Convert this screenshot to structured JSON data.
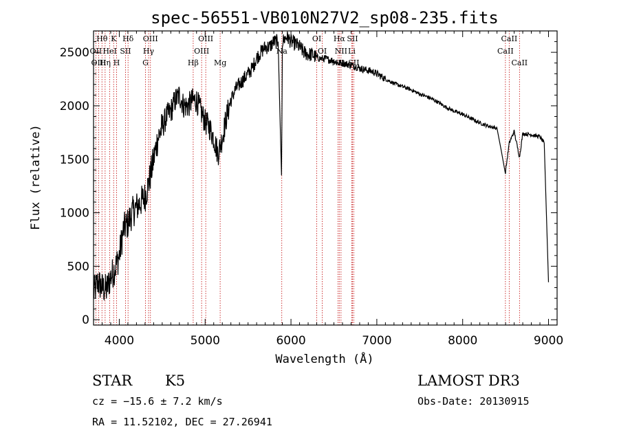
{
  "chart_data": {
    "type": "line",
    "title": "spec-56551-VB010N27V2_sp08-235.fits",
    "xlabel": "Wavelength (Å)",
    "ylabel": "Flux (relative)",
    "xlim": [
      3700,
      9100
    ],
    "ylim": [
      -50,
      2700
    ],
    "xticks": [
      4000,
      5000,
      6000,
      7000,
      8000,
      9000
    ],
    "yticks": [
      0,
      500,
      1000,
      1500,
      2000,
      2500
    ],
    "xtick_labels": [
      "4000",
      "5000",
      "6000",
      "7000",
      "8000",
      "9000"
    ],
    "ytick_labels": [
      "0",
      "500",
      "1000",
      "1500",
      "2000",
      "2500"
    ],
    "spectrum": {
      "x": [
        3700,
        3750,
        3800,
        3850,
        3900,
        3950,
        4000,
        4050,
        4100,
        4150,
        4200,
        4250,
        4300,
        4350,
        4400,
        4450,
        4500,
        4550,
        4600,
        4650,
        4700,
        4750,
        4800,
        4850,
        4900,
        4950,
        5000,
        5050,
        5100,
        5150,
        5200,
        5250,
        5300,
        5350,
        5400,
        5450,
        5500,
        5550,
        5600,
        5650,
        5700,
        5750,
        5800,
        5850,
        5890,
        5900,
        5950,
        6000,
        6050,
        6100,
        6150,
        6200,
        6250,
        6300,
        6350,
        6400,
        6450,
        6500,
        6550,
        6600,
        6650,
        6700,
        6750,
        6800,
        6850,
        6900,
        6950,
        7000,
        7100,
        7200,
        7300,
        7400,
        7500,
        7600,
        7700,
        7800,
        7900,
        8000,
        8100,
        8200,
        8300,
        8400,
        8498,
        8542,
        8600,
        8662,
        8700,
        8800,
        8900,
        8950,
        9000
      ],
      "y": [
        250,
        350,
        300,
        280,
        400,
        480,
        600,
        850,
        900,
        1000,
        1050,
        1100,
        1150,
        1300,
        1500,
        1700,
        1800,
        1900,
        1950,
        2050,
        2100,
        2000,
        2000,
        2050,
        2050,
        1950,
        1850,
        1800,
        1700,
        1550,
        1700,
        1900,
        2050,
        2150,
        2200,
        2250,
        2300,
        2350,
        2450,
        2500,
        2550,
        2550,
        2600,
        2600,
        1350,
        2600,
        2650,
        2600,
        2580,
        2550,
        2500,
        2480,
        2480,
        2450,
        2440,
        2440,
        2430,
        2420,
        2400,
        2400,
        2390,
        2380,
        2370,
        2350,
        2340,
        2330,
        2320,
        2300,
        2250,
        2210,
        2180,
        2150,
        2110,
        2080,
        2040,
        1990,
        1950,
        1920,
        1880,
        1840,
        1810,
        1790,
        1380,
        1650,
        1760,
        1520,
        1740,
        1730,
        1710,
        1650,
        350
      ]
    },
    "line_markers": [
      {
        "label": "Hθ",
        "wl": 3798,
        "row": 0
      },
      {
        "label": "OII",
        "wl": 3727,
        "row": 1
      },
      {
        "label": "OIII",
        "wl": 3760,
        "row": 2
      },
      {
        "label": "K",
        "wl": 3934,
        "row": 0
      },
      {
        "label": "HeI",
        "wl": 3889,
        "row": 1
      },
      {
        "label": "Hη",
        "wl": 3835,
        "row": 2
      },
      {
        "label": "H",
        "wl": 3969,
        "row": 2
      },
      {
        "label": "Hδ",
        "wl": 4102,
        "row": 0
      },
      {
        "label": "SII",
        "wl": 4072,
        "row": 1
      },
      {
        "label": "OIII",
        "wl": 4363,
        "row": 0
      },
      {
        "label": "Hγ",
        "wl": 4341,
        "row": 1
      },
      {
        "label": "G",
        "wl": 4305,
        "row": 2
      },
      {
        "label": "Hβ",
        "wl": 4861,
        "row": 2
      },
      {
        "label": "OIII",
        "wl": 5007,
        "row": 0
      },
      {
        "label": "OIII",
        "wl": 4959,
        "row": 1
      },
      {
        "label": "Mg",
        "wl": 5175,
        "row": 2
      },
      {
        "label": "Na",
        "wl": 5893,
        "row": 1
      },
      {
        "label": "OI",
        "wl": 6300,
        "row": 0
      },
      {
        "label": "OI",
        "wl": 6364,
        "row": 1
      },
      {
        "label": "NII",
        "wl": 6548,
        "row": 2
      },
      {
        "label": "Hα",
        "wl": 6563,
        "row": 0
      },
      {
        "label": "NII",
        "wl": 6583,
        "row": 1
      },
      {
        "label": "SII",
        "wl": 6716,
        "row": 0
      },
      {
        "label": "Li",
        "wl": 6708,
        "row": 1
      },
      {
        "label": "SII",
        "wl": 6731,
        "row": 2
      },
      {
        "label": "CaII",
        "wl": 8542,
        "row": 0
      },
      {
        "label": "CaII",
        "wl": 8498,
        "row": 1
      },
      {
        "label": "CaII",
        "wl": 8662,
        "row": 2
      }
    ],
    "marker_color": "#c00000"
  },
  "info": {
    "object_class": "STAR",
    "subclass": "K5",
    "survey": "LAMOST DR3",
    "cz": "cz = −15.6 ± 7.2 km/s",
    "obs_date": "Obs-Date: 20130915",
    "radec": "RA =  11.52102, DEC =  27.26941"
  }
}
